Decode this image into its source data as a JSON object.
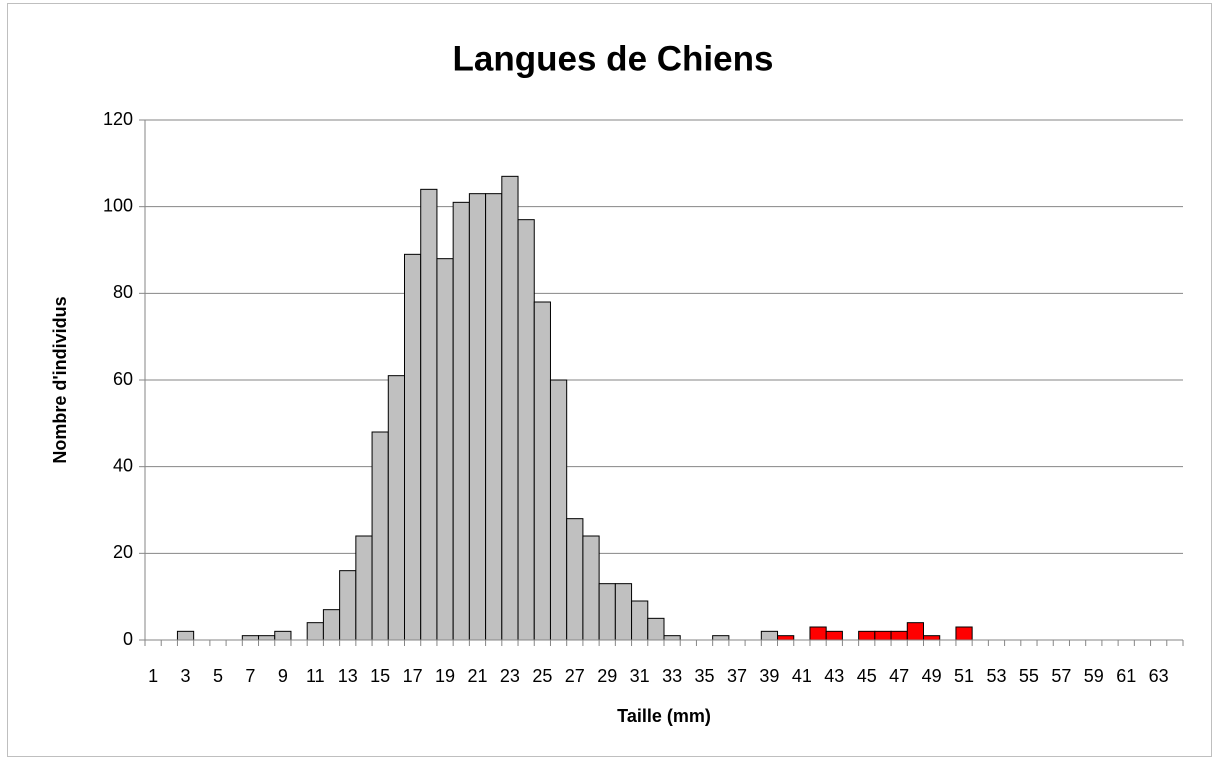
{
  "chart_data": {
    "type": "bar",
    "title": "Langues de Chiens",
    "xlabel": "Taille (mm)",
    "ylabel": "Nombre d'individus",
    "categories": [
      1,
      null,
      3,
      null,
      5,
      null,
      7,
      null,
      9,
      null,
      11,
      null,
      13,
      null,
      15,
      null,
      17,
      null,
      19,
      null,
      21,
      null,
      23,
      null,
      25,
      null,
      27,
      null,
      29,
      null,
      31,
      null,
      33,
      null,
      35,
      null,
      37,
      null,
      39,
      null,
      41,
      null,
      43,
      null,
      45,
      null,
      47,
      null,
      49,
      null,
      51,
      null,
      53,
      null,
      55,
      null,
      57,
      null,
      59,
      null,
      61,
      null,
      63,
      null
    ],
    "values": [
      0,
      0,
      2,
      0,
      0,
      0,
      1,
      1,
      2,
      0,
      4,
      7,
      16,
      24,
      48,
      61,
      89,
      104,
      88,
      101,
      103,
      103,
      107,
      97,
      78,
      60,
      28,
      24,
      13,
      13,
      9,
      5,
      1,
      0,
      0,
      1,
      0,
      0,
      2,
      1,
      0,
      3,
      2,
      0,
      2,
      2,
      2,
      4,
      1,
      0,
      3,
      0,
      0,
      0,
      0,
      0,
      0,
      0,
      0,
      0,
      0,
      0,
      0,
      0
    ],
    "colors": [
      "#c0c0c0",
      "#c0c0c0",
      "#c0c0c0",
      "#c0c0c0",
      "#c0c0c0",
      "#c0c0c0",
      "#c0c0c0",
      "#c0c0c0",
      "#c0c0c0",
      "#c0c0c0",
      "#c0c0c0",
      "#c0c0c0",
      "#c0c0c0",
      "#c0c0c0",
      "#c0c0c0",
      "#c0c0c0",
      "#c0c0c0",
      "#c0c0c0",
      "#c0c0c0",
      "#c0c0c0",
      "#c0c0c0",
      "#c0c0c0",
      "#c0c0c0",
      "#c0c0c0",
      "#c0c0c0",
      "#c0c0c0",
      "#c0c0c0",
      "#c0c0c0",
      "#c0c0c0",
      "#c0c0c0",
      "#c0c0c0",
      "#c0c0c0",
      "#c0c0c0",
      "#c0c0c0",
      "#c0c0c0",
      "#c0c0c0",
      "#c0c0c0",
      "#c0c0c0",
      "#c0c0c0",
      "#ff0000",
      "#ff0000",
      "#ff0000",
      "#ff0000",
      "#ff0000",
      "#ff0000",
      "#ff0000",
      "#ff0000",
      "#ff0000",
      "#ff0000",
      "#ff0000",
      "#ff0000",
      "#ff0000",
      "#ff0000",
      "#ff0000",
      "#ff0000",
      "#ff0000",
      "#ff0000",
      "#ff0000",
      "#ff0000",
      "#ff0000",
      "#ff0000",
      "#ff0000",
      "#ff0000",
      "#ff0000"
    ],
    "ylim": [
      0,
      120
    ],
    "yticks": [
      0,
      20,
      40,
      60,
      80,
      100,
      120
    ],
    "grid": true
  }
}
